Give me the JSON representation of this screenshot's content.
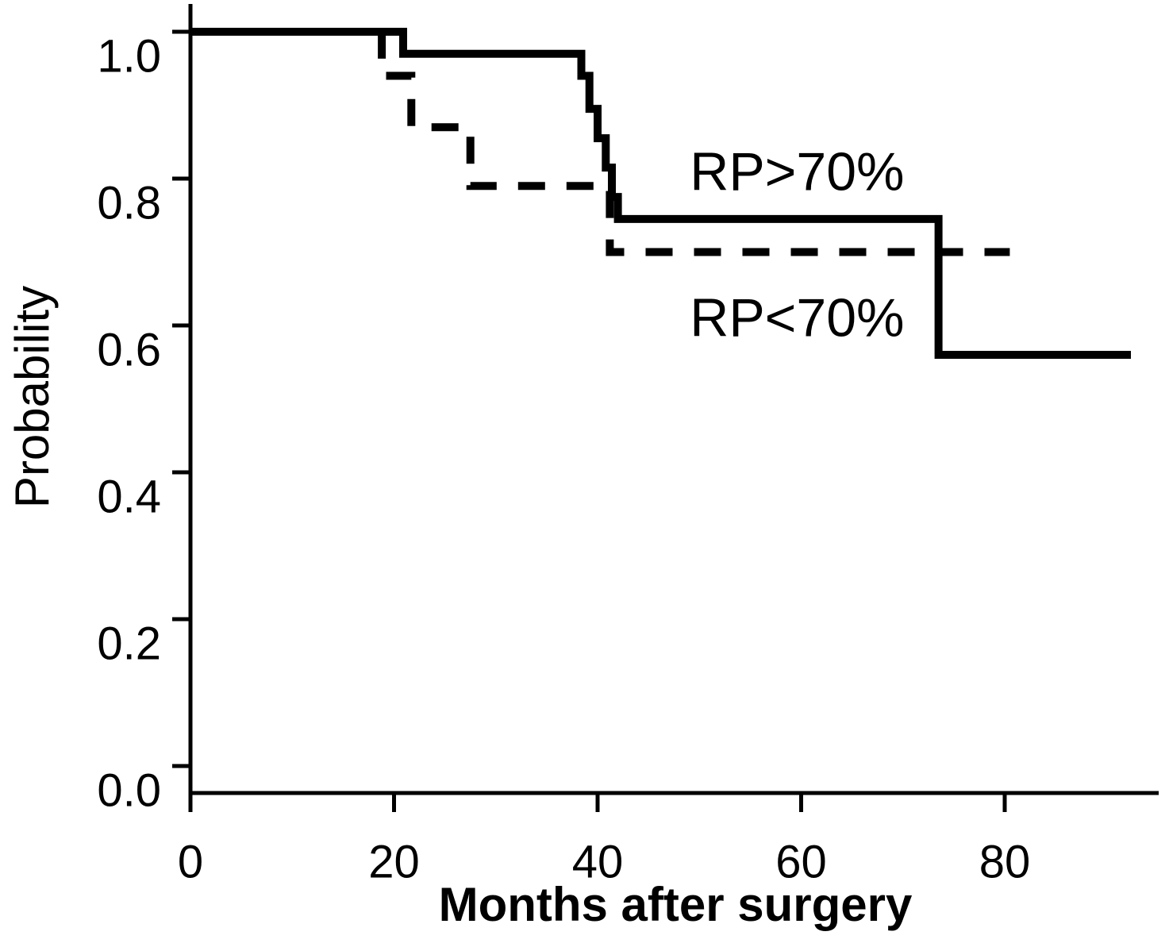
{
  "page": {
    "background_color": "#ffffff",
    "ink_color": "#000000"
  },
  "chart_data": {
    "type": "line",
    "subtype": "kaplan-meier-step-curves",
    "title": "",
    "xlabel": "Months after surgery",
    "ylabel": "Probability",
    "xlim": [
      0,
      95
    ],
    "ylim": [
      0,
      1.04
    ],
    "grid": false,
    "legend_position": "inline-annotations-on-plot",
    "xticks": [
      0,
      20,
      40,
      60,
      80
    ],
    "xtick_labels": [
      "0",
      "20",
      "40",
      "60",
      "80"
    ],
    "yticks": [
      0.0,
      0.2,
      0.4,
      0.6,
      0.8,
      1.0
    ],
    "ytick_labels": [
      "0.0",
      "0.2",
      "0.4",
      "0.6",
      "0.8",
      "1.0"
    ],
    "series": [
      {
        "name": "RP>70%",
        "line_style": "solid",
        "color": "#000000",
        "label_anchor": {
          "x": 59.6,
          "y": 0.81
        },
        "points": [
          [
            0,
            1.0
          ],
          [
            20.9,
            1.0
          ],
          [
            20.9,
            0.97
          ],
          [
            38.4,
            0.97
          ],
          [
            38.4,
            0.94
          ],
          [
            39.2,
            0.94
          ],
          [
            39.2,
            0.895
          ],
          [
            40.0,
            0.895
          ],
          [
            40.0,
            0.855
          ],
          [
            40.8,
            0.855
          ],
          [
            40.8,
            0.815
          ],
          [
            41.4,
            0.815
          ],
          [
            41.4,
            0.775
          ],
          [
            42.0,
            0.775
          ],
          [
            42.0,
            0.745
          ],
          [
            73.5,
            0.745
          ],
          [
            73.5,
            0.56
          ],
          [
            92.4,
            0.56
          ]
        ]
      },
      {
        "name": "RP<70%",
        "line_style": "dashed",
        "color": "#000000",
        "label_anchor": {
          "x": 59.6,
          "y": 0.611
        },
        "points": [
          [
            0,
            1.0
          ],
          [
            18.8,
            1.0
          ],
          [
            18.8,
            0.94
          ],
          [
            21.7,
            0.94
          ],
          [
            21.7,
            0.87
          ],
          [
            27.5,
            0.87
          ],
          [
            27.5,
            0.79
          ],
          [
            41.2,
            0.79
          ],
          [
            41.2,
            0.7
          ],
          [
            80.5,
            0.7
          ]
        ]
      }
    ]
  }
}
